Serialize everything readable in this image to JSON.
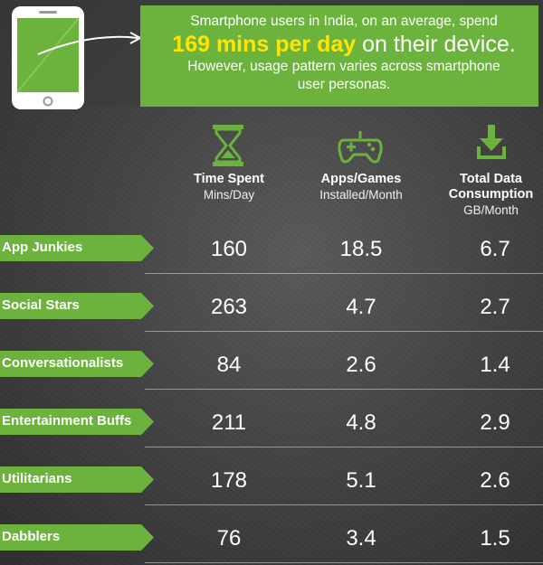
{
  "header": {
    "line1": "Smartphone users in India, on an average, spend",
    "highlight": "169 mins per day",
    "highlight_rest": " on their device.",
    "line3": "However, usage pattern varies across smartphone",
    "line4": "user personas."
  },
  "colors": {
    "accent_green": "#6cb33e",
    "banner_green": "#6cb33e",
    "highlight_yellow": "#ffe600"
  },
  "icons": [
    "smartphone-icon",
    "hourglass-icon",
    "gamepad-icon",
    "download-icon"
  ],
  "chart_data": {
    "type": "table",
    "columns": [
      {
        "title": "Time Spent",
        "unit": "Mins/Day"
      },
      {
        "title": "Apps/Games",
        "unit": "Installed/Month"
      },
      {
        "title_line1": "Total Data",
        "title_line2": "Consumption",
        "unit": "GB/Month"
      }
    ],
    "rows": [
      {
        "persona": "App Junkies",
        "values": [
          "160",
          "18.5",
          "6.7"
        ]
      },
      {
        "persona": "Social Stars",
        "values": [
          "263",
          "4.7",
          "2.7"
        ]
      },
      {
        "persona": "Conversationalists",
        "values": [
          "84",
          "2.6",
          "1.4"
        ]
      },
      {
        "persona": "Entertainment Buffs",
        "values": [
          "211",
          "4.8",
          "2.9"
        ]
      },
      {
        "persona": "Utilitarians",
        "values": [
          "178",
          "5.1",
          "2.6"
        ]
      },
      {
        "persona": "Dabblers",
        "values": [
          "76",
          "3.4",
          "1.5"
        ]
      }
    ]
  }
}
